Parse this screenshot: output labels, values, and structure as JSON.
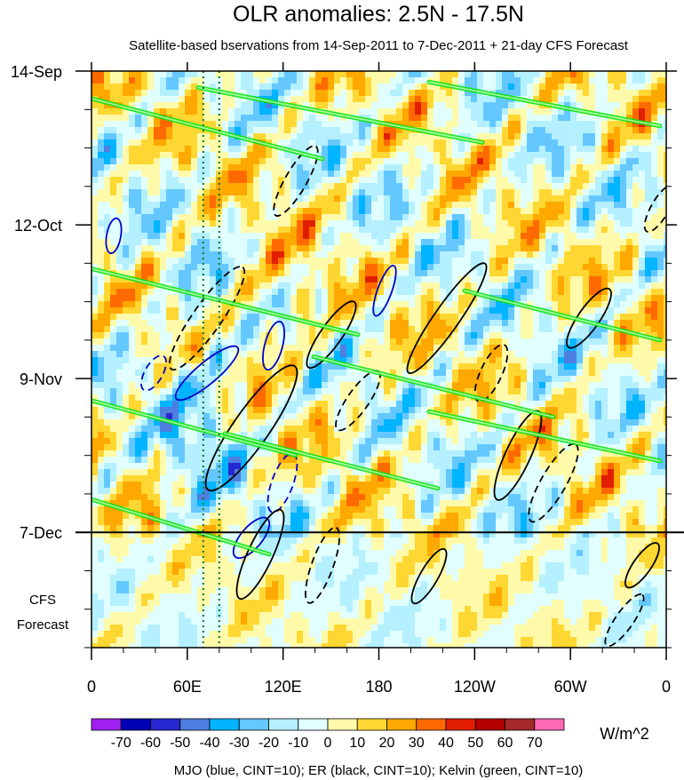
{
  "chart_data": {
    "type": "heatmap",
    "title": "OLR anomalies: 2.5N - 17.5N",
    "subtitle": "Satellite-based bservations from 14-Sep-2011 to 7-Dec-2011 + 21-day CFS Forecast",
    "x_ticks": [
      "0",
      "60E",
      "120E",
      "180",
      "120W",
      "60W",
      "0"
    ],
    "x_tick_degrees": [
      0,
      60,
      120,
      180,
      240,
      300,
      360
    ],
    "x_range": [
      0,
      360
    ],
    "y_ticks": [
      "14-Sep",
      "12-Oct",
      "9-Nov",
      "7-Dec"
    ],
    "y_tick_days": [
      0,
      28,
      56,
      84
    ],
    "y_range_days": [
      0,
      105
    ],
    "observation_end_day": 84,
    "forecast_label_line1": "CFS",
    "forecast_label_line2": "Forecast",
    "colorbar": {
      "levels": [
        -70,
        -60,
        -50,
        -40,
        -30,
        -20,
        -10,
        0,
        10,
        20,
        30,
        40,
        50,
        60,
        70
      ],
      "level_labels": [
        "-70",
        "-60",
        "-50",
        "-40",
        "-30",
        "-20",
        "-10",
        "0",
        "10",
        "20",
        "30",
        "40",
        "50",
        "60",
        "70"
      ],
      "colors": [
        "#a020f0",
        "#0000b4",
        "#2828d2",
        "#4d7fe0",
        "#00b4ff",
        "#64c8ff",
        "#b4f0ff",
        "#e1ffff",
        "#fffaaa",
        "#ffd732",
        "#ffa800",
        "#ff6a00",
        "#e11e00",
        "#b40000",
        "#a52a2a",
        "#ff69b4"
      ],
      "units": "W/m^2"
    },
    "contour_legend": "MJO (blue, CINT=10); ER (black, CINT=10); Kelvin (green, CINT=10)",
    "reference_lines_lon": [
      70,
      80
    ],
    "series": [
      {
        "name": "MJO",
        "color": "#0000c8",
        "cint": 10
      },
      {
        "name": "ER",
        "color": "#000000",
        "cint": 10
      },
      {
        "name": "Kelvin",
        "color": "#00e600",
        "cint": 10
      }
    ]
  }
}
